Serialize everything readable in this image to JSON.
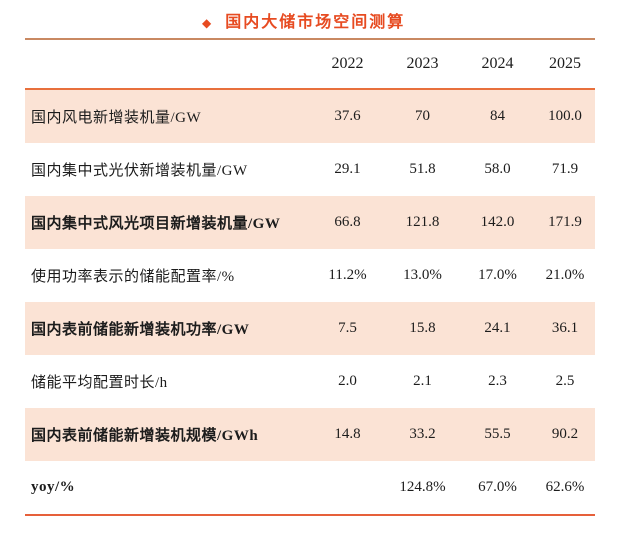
{
  "title": {
    "diamond": "◆",
    "text": "国内大储市场空间测算"
  },
  "table": {
    "corner_label": "",
    "years": [
      "2022",
      "2023",
      "2024",
      "2025"
    ],
    "rows": [
      {
        "label": "国内风电新增装机量/GW",
        "values": [
          "37.6",
          "70",
          "84",
          "100.0"
        ]
      },
      {
        "label": "国内集中式光伏新增装机量/GW",
        "values": [
          "29.1",
          "51.8",
          "58.0",
          "71.9"
        ]
      },
      {
        "label": "国内集中式风光项目新增装机量/GW",
        "values": [
          "66.8",
          "121.8",
          "142.0",
          "171.9"
        ]
      },
      {
        "label": "使用功率表示的储能配置率/%",
        "values": [
          "11.2%",
          "13.0%",
          "17.0%",
          "21.0%"
        ]
      },
      {
        "label": "国内表前储能新增装机功率/GW",
        "values": [
          "7.5",
          "15.8",
          "24.1",
          "36.1"
        ]
      },
      {
        "label": "储能平均配置时长/h",
        "values": [
          "2.0",
          "2.1",
          "2.3",
          "2.5"
        ]
      },
      {
        "label": "国内表前储能新增装机规模/GWh",
        "values": [
          "14.8",
          "33.2",
          "55.5",
          "90.2"
        ]
      },
      {
        "label": "yoy/%",
        "values": [
          "",
          "124.8%",
          "67.0%",
          "62.6%"
        ]
      }
    ]
  },
  "colors": {
    "title_accent": "#e74b21",
    "row_shade": "#fbe3d5",
    "top_rule": "#c98962",
    "header_rule": "#e8703c",
    "bottom_rule": "#e6603a",
    "text": "#1c1c1c"
  },
  "chart_data": {
    "type": "table",
    "title": "国内大储市场空间测算",
    "categories": [
      "2022",
      "2023",
      "2024",
      "2025"
    ],
    "series": [
      {
        "name": "国内风电新增装机量/GW",
        "values": [
          37.6,
          70,
          84,
          100.0
        ]
      },
      {
        "name": "国内集中式光伏新增装机量/GW",
        "values": [
          29.1,
          51.8,
          58.0,
          71.9
        ]
      },
      {
        "name": "国内集中式风光项目新增装机量/GW",
        "values": [
          66.8,
          121.8,
          142.0,
          171.9
        ]
      },
      {
        "name": "使用功率表示的储能配置率/%",
        "values": [
          "11.2%",
          "13.0%",
          "17.0%",
          "21.0%"
        ]
      },
      {
        "name": "国内表前储能新增装机功率/GW",
        "values": [
          7.5,
          15.8,
          24.1,
          36.1
        ]
      },
      {
        "name": "储能平均配置时长/h",
        "values": [
          2.0,
          2.1,
          2.3,
          2.5
        ]
      },
      {
        "name": "国内表前储能新增装机规模/GWh",
        "values": [
          14.8,
          33.2,
          55.5,
          90.2
        ]
      },
      {
        "name": "yoy/%",
        "values": [
          null,
          "124.8%",
          "67.0%",
          "62.6%"
        ]
      }
    ]
  }
}
